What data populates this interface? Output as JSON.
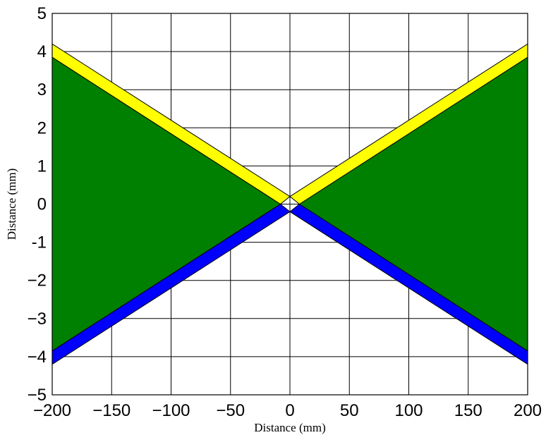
{
  "chart_data": {
    "type": "area",
    "xlabel": "Distance (mm)",
    "ylabel": "Distance (mm)",
    "xlim": [
      -200,
      200
    ],
    "ylim": [
      -5,
      5
    ],
    "xticks": [
      -200,
      -150,
      -100,
      -50,
      0,
      50,
      100,
      150,
      200
    ],
    "yticks": [
      -5,
      -4,
      -3,
      -2,
      -1,
      0,
      1,
      2,
      3,
      4,
      5
    ],
    "xtick_labels": [
      "−200",
      "−150",
      "−100",
      "−50",
      "0",
      "50",
      "100",
      "150",
      "200"
    ],
    "ytick_labels": [
      "−5",
      "−4",
      "−3",
      "−2",
      "-1",
      "0",
      "1",
      "2",
      "3",
      "4",
      "5"
    ],
    "grid": true,
    "series": [
      {
        "color": "#008000",
        "polygons": [
          [
            [
              -200,
              3.85
            ],
            [
              -200,
              -3.85
            ],
            [
              -8,
              0
            ]
          ],
          [
            [
              200,
              3.85
            ],
            [
              200,
              -3.85
            ],
            [
              8,
              0
            ]
          ]
        ]
      },
      {
        "color": "#ffff00",
        "polygons": [
          [
            [
              -200,
              4.2
            ],
            [
              -200,
              3.85
            ],
            [
              -8,
              0
            ],
            [
              0,
              0.2
            ]
          ],
          [
            [
              200,
              4.2
            ],
            [
              200,
              3.85
            ],
            [
              8,
              0
            ],
            [
              0,
              0.2
            ]
          ]
        ]
      },
      {
        "color": "#0000ff",
        "polygons": [
          [
            [
              -200,
              -4.2
            ],
            [
              -200,
              -3.85
            ],
            [
              -8,
              0
            ],
            [
              0,
              -0.2
            ]
          ],
          [
            [
              200,
              -4.2
            ],
            [
              200,
              -3.85
            ],
            [
              8,
              0
            ],
            [
              0,
              -0.2
            ]
          ]
        ]
      }
    ]
  }
}
